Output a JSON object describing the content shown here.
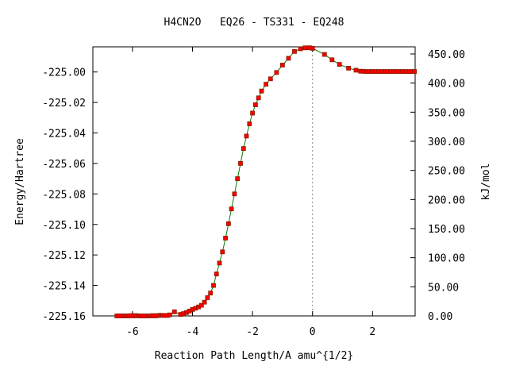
{
  "chart_data": {
    "type": "scatter",
    "title": "H4CN2O   EQ26 - TS331 - EQ248",
    "xlabel": "Reaction Path Length/A amu^{1/2}",
    "ylabel": "Energy/Hartree",
    "y2label": "kJ/mol",
    "xlim": [
      -7.32,
      3.42
    ],
    "ylim": [
      -225.16,
      -224.9835
    ],
    "y2lim": [
      0,
      462.25
    ],
    "x_ticks": [
      -6,
      -4,
      -2,
      0,
      2
    ],
    "x_tick_labels": [
      "-6",
      "-4",
      "-2",
      "0",
      "2"
    ],
    "y_ticks": [
      -225.16,
      -225.14,
      -225.12,
      -225.1,
      -225.08,
      -225.06,
      -225.04,
      -225.02,
      -225.0
    ],
    "y_tick_labels": [
      "-225.16",
      "-225.14",
      "-225.12",
      "-225.10",
      "-225.08",
      "-225.06",
      "-225.04",
      "-225.02",
      "-225.00"
    ],
    "y2_ticks": [
      0,
      50,
      100,
      150,
      200,
      250,
      300,
      350,
      400,
      450
    ],
    "y2_tick_labels": [
      "0.00",
      "50.00",
      "100.00",
      "150.00",
      "200.00",
      "250.00",
      "300.00",
      "350.00",
      "400.00",
      "450.00"
    ],
    "ts_marker_x": 0.0,
    "grid": false,
    "colors": {
      "line": "#008000",
      "marker": "#ff0000",
      "ts_line": "#888888",
      "axis": "#000000"
    },
    "series": [
      {
        "x": [
          -6.52,
          -6.44,
          -6.36,
          -6.28,
          -6.2,
          -6.12,
          -6.04,
          -5.96,
          -5.88,
          -5.8,
          -5.72,
          -5.64,
          -5.56,
          -5.48,
          -5.4,
          -5.32,
          -5.24,
          -5.16,
          -5.08,
          -5.0,
          -4.92,
          -4.84,
          -4.76,
          -4.6,
          -4.4,
          -4.3,
          -4.2,
          -4.1,
          -4.0,
          -3.9,
          -3.8,
          -3.7,
          -3.6,
          -3.5,
          -3.4,
          -3.3,
          -3.2,
          -3.1,
          -3.0,
          -2.9,
          -2.8,
          -2.7,
          -2.6,
          -2.5,
          -2.4,
          -2.3,
          -2.2,
          -2.1,
          -2.0,
          -1.9,
          -1.8,
          -1.7,
          -1.55,
          -1.4,
          -1.2,
          -1.0,
          -0.8,
          -0.6,
          -0.4,
          -0.25,
          -0.1,
          0.0,
          0.4,
          0.65,
          0.9,
          1.2,
          1.45,
          1.6,
          1.7,
          1.8,
          1.9,
          2.0,
          2.1,
          2.2,
          2.3,
          2.4,
          2.5,
          2.6,
          2.7,
          2.8,
          2.9,
          3.0,
          3.1,
          3.2,
          3.3,
          3.4
        ],
        "y": [
          -225.16,
          -225.16,
          -225.16,
          -225.16,
          -225.16,
          -225.16,
          -225.1598,
          -225.16,
          -225.1598,
          -225.16,
          -225.16,
          -225.16,
          -225.16,
          -225.16,
          -225.16,
          -225.1598,
          -225.16,
          -225.1598,
          -225.1596,
          -225.1597,
          -225.1597,
          -225.1597,
          -225.1593,
          -225.1573,
          -225.159,
          -225.1585,
          -225.1578,
          -225.1568,
          -225.1558,
          -225.155,
          -225.1541,
          -225.153,
          -225.151,
          -225.148,
          -225.145,
          -225.14,
          -225.1325,
          -225.1253,
          -225.118,
          -225.109,
          -225.0995,
          -225.0898,
          -225.08,
          -225.07,
          -225.06,
          -225.0502,
          -225.042,
          -225.034,
          -225.027,
          -225.0215,
          -225.017,
          -225.0125,
          -225.008,
          -225.0045,
          -225.0003,
          -224.9955,
          -224.991,
          -224.9865,
          -224.9848,
          -224.9842,
          -224.9841,
          -224.9845,
          -224.9885,
          -224.992,
          -224.995,
          -224.9975,
          -224.9988,
          -224.9995,
          -224.9996,
          -224.9997,
          -224.9997,
          -224.9997,
          -224.9997,
          -224.9997,
          -224.9997,
          -224.9997,
          -224.9997,
          -224.9997,
          -224.9997,
          -224.9997,
          -224.9997,
          -224.9997,
          -224.9997,
          -224.9997,
          -224.9997,
          -224.9997
        ]
      }
    ]
  }
}
